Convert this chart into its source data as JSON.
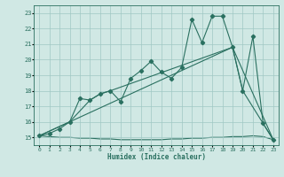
{
  "xlabel": "Humidex (Indice chaleur)",
  "bg_color": "#d0e8e4",
  "grid_color": "#a0c8c4",
  "line_color": "#2a7060",
  "xlim": [
    -0.5,
    23.5
  ],
  "ylim": [
    14.5,
    23.5
  ],
  "xticks": [
    0,
    1,
    2,
    3,
    4,
    5,
    6,
    7,
    8,
    9,
    10,
    11,
    12,
    13,
    14,
    15,
    16,
    17,
    18,
    19,
    20,
    21,
    22,
    23
  ],
  "yticks": [
    15,
    16,
    17,
    18,
    19,
    20,
    21,
    22,
    23
  ],
  "line1_x": [
    0,
    1,
    2,
    3,
    4,
    5,
    6,
    7,
    8,
    9,
    10,
    11,
    12,
    13,
    14,
    15,
    16,
    17,
    18,
    19,
    20,
    21,
    22,
    23
  ],
  "line1_y": [
    15.1,
    15.25,
    15.55,
    16.0,
    17.5,
    17.4,
    17.8,
    18.0,
    17.3,
    18.8,
    19.3,
    19.9,
    19.2,
    18.8,
    19.5,
    22.6,
    21.1,
    22.8,
    22.8,
    20.8,
    18.0,
    21.5,
    15.9,
    14.85
  ],
  "line2_x": [
    0,
    3,
    5,
    6,
    7,
    19,
    20,
    23
  ],
  "line2_y": [
    15.1,
    16.0,
    17.4,
    17.8,
    18.0,
    20.8,
    18.0,
    14.85
  ],
  "line3_x": [
    0,
    3,
    19,
    23
  ],
  "line3_y": [
    15.1,
    16.0,
    20.8,
    14.85
  ],
  "line4_x": [
    0,
    1,
    2,
    3,
    4,
    5,
    6,
    7,
    8,
    9,
    10,
    11,
    12,
    13,
    14,
    15,
    16,
    17,
    18,
    19,
    20,
    21,
    22,
    23
  ],
  "line4_y": [
    15.1,
    15.05,
    15.0,
    15.0,
    14.95,
    14.95,
    14.9,
    14.9,
    14.85,
    14.85,
    14.85,
    14.85,
    14.85,
    14.9,
    14.9,
    14.95,
    14.95,
    15.0,
    15.0,
    15.05,
    15.05,
    15.1,
    15.05,
    14.85
  ]
}
